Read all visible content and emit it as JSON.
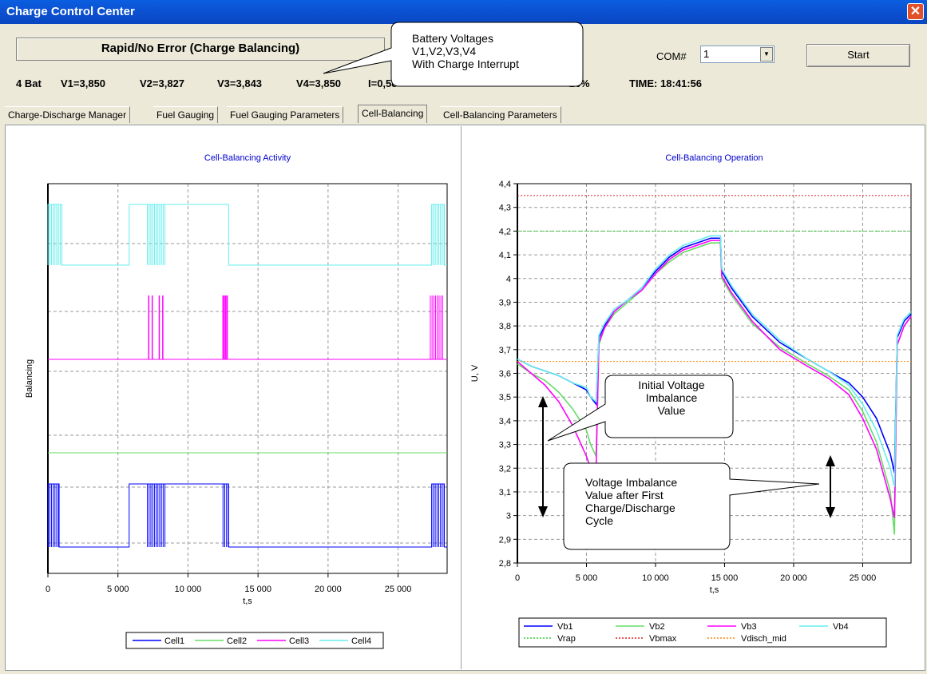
{
  "window": {
    "title": "Charge Control Center",
    "close_glyph": "✕"
  },
  "status": {
    "mode_text": "Rapid/No Error (Charge Balancing)"
  },
  "com": {
    "label": "COM#",
    "value": "1"
  },
  "start_button": {
    "label": "Start"
  },
  "readout": {
    "bat": "4 Bat",
    "v1": "V1=3,850",
    "v2": "V2=3,827",
    "v3": "V3=3,843",
    "v4": "V4=3,850",
    "current": "I=0,58",
    "soc": "=16%",
    "time": "TIME: 18:41:56"
  },
  "tabs": [
    {
      "label": "Charge-Discharge Manager",
      "active": false
    },
    {
      "label": "Fuel Gauging",
      "active": false
    },
    {
      "label": "Fuel Gauging Parameters",
      "active": false
    },
    {
      "label": "Cell-Balancing",
      "active": true
    },
    {
      "label": "Cell-Balancing Parameters",
      "active": false
    }
  ],
  "callouts": {
    "battery_voltages": [
      "Battery Voltages",
      "V1,V2,V3,V4",
      "With Charge Interrupt"
    ],
    "initial_imbalance": [
      "Initial Voltage",
      "Imbalance",
      "Value"
    ],
    "after_imbalance": [
      "Voltage Imbalance",
      "Value after First",
      "Charge/Discharge",
      "Cycle"
    ]
  },
  "chart_data": [
    {
      "type": "line",
      "title": "Cell-Balancing Activity",
      "xlabel": "t,s",
      "ylabel": "Balancing",
      "xlim": [
        0,
        28500
      ],
      "xticks": [
        0,
        5000,
        10000,
        15000,
        20000,
        25000
      ],
      "xtick_labels": [
        "0",
        "5 000",
        "10 000",
        "15 000",
        "20 000",
        "25 000"
      ],
      "grid": true,
      "legend_position": "bottom",
      "series": [
        {
          "name": "Cell1",
          "color": "#0000ff",
          "on_intervals": [
            [
              0,
              800
            ],
            [
              5800,
              12900
            ],
            [
              27400,
              28300
            ]
          ],
          "burst_regions": [
            [
              0,
              800
            ],
            [
              7100,
              8400
            ],
            [
              12500,
              12900
            ],
            [
              27400,
              28300
            ]
          ]
        },
        {
          "name": "Cell2",
          "color": "#66dd66",
          "on_intervals": [],
          "burst_regions": []
        },
        {
          "name": "Cell3",
          "color": "#ff00ff",
          "spikes": [
            7200,
            7450,
            7950,
            8200,
            12500,
            12600,
            12700,
            12800
          ],
          "burst_regions": [
            [
              27300,
              28300
            ]
          ]
        },
        {
          "name": "Cell4",
          "color": "#66eeee",
          "on_intervals": [
            [
              0,
              1000
            ],
            [
              5800,
              12900
            ],
            [
              27400,
              28300
            ]
          ],
          "burst_regions": [
            [
              0,
              1000
            ],
            [
              7100,
              8400
            ],
            [
              27400,
              28300
            ]
          ]
        }
      ]
    },
    {
      "type": "line",
      "title": "Cell-Balancing Operation",
      "xlabel": "t,s",
      "ylabel": "U, V",
      "xlim": [
        0,
        28500
      ],
      "ylim": [
        2.8,
        4.4
      ],
      "xticks": [
        0,
        5000,
        10000,
        15000,
        20000,
        25000
      ],
      "xtick_labels": [
        "0",
        "5 000",
        "10 000",
        "15 000",
        "20 000",
        "25 000"
      ],
      "yticks": [
        2.8,
        2.9,
        3.0,
        3.1,
        3.2,
        3.3,
        3.4,
        3.5,
        3.6,
        3.7,
        3.8,
        3.9,
        4.0,
        4.1,
        4.2,
        4.3,
        4.4
      ],
      "ytick_labels": [
        "2,8",
        "2,9",
        "3",
        "3,1",
        "3,2",
        "3,3",
        "3,4",
        "3,5",
        "3,6",
        "3,7",
        "3,8",
        "3,9",
        "4",
        "4,1",
        "4,2",
        "4,3",
        "4,4"
      ],
      "grid": true,
      "legend_position": "bottom",
      "x": [
        0,
        1000,
        2000,
        3000,
        4000,
        5000,
        5300,
        5700,
        5900,
        6300,
        7000,
        8000,
        9000,
        10000,
        11000,
        12000,
        13000,
        14000,
        14700,
        14800,
        15500,
        17000,
        19000,
        21000,
        22500,
        24000,
        25000,
        26000,
        27000,
        27300,
        27500,
        28000,
        28500
      ],
      "series": [
        {
          "name": "Vb1",
          "color": "#0000ff",
          "style": "solid",
          "values": [
            3.66,
            3.63,
            3.61,
            3.59,
            3.56,
            3.53,
            3.5,
            3.47,
            3.75,
            3.8,
            3.86,
            3.91,
            3.96,
            4.03,
            4.09,
            4.13,
            4.15,
            4.17,
            4.17,
            4.03,
            3.96,
            3.84,
            3.73,
            3.66,
            3.61,
            3.56,
            3.5,
            3.41,
            3.26,
            3.18,
            3.75,
            3.82,
            3.85
          ]
        },
        {
          "name": "Vb2",
          "color": "#66dd66",
          "style": "solid",
          "values": [
            3.64,
            3.6,
            3.57,
            3.52,
            3.45,
            3.36,
            3.3,
            3.25,
            3.72,
            3.79,
            3.85,
            3.9,
            3.95,
            4.02,
            4.07,
            4.11,
            4.13,
            4.15,
            4.15,
            4.0,
            3.93,
            3.81,
            3.71,
            3.64,
            3.59,
            3.53,
            3.44,
            3.31,
            3.1,
            2.92,
            3.72,
            3.8,
            3.84
          ]
        },
        {
          "name": "Vb3",
          "color": "#ff00ff",
          "style": "solid",
          "values": [
            3.65,
            3.6,
            3.55,
            3.48,
            3.38,
            3.25,
            3.2,
            3.2,
            3.73,
            3.79,
            3.86,
            3.91,
            3.95,
            4.02,
            4.08,
            4.12,
            4.14,
            4.16,
            4.16,
            4.01,
            3.94,
            3.82,
            3.7,
            3.63,
            3.58,
            3.51,
            3.41,
            3.28,
            3.07,
            2.99,
            3.72,
            3.8,
            3.84
          ]
        },
        {
          "name": "Vb4",
          "color": "#66eeee",
          "style": "solid",
          "values": [
            3.66,
            3.63,
            3.61,
            3.59,
            3.56,
            3.54,
            3.5,
            3.48,
            3.76,
            3.81,
            3.87,
            3.91,
            3.96,
            4.04,
            4.1,
            4.14,
            4.16,
            4.18,
            4.18,
            4.04,
            3.97,
            3.85,
            3.74,
            3.66,
            3.61,
            3.55,
            3.47,
            3.36,
            3.2,
            3.12,
            3.76,
            3.83,
            3.86
          ]
        },
        {
          "name": "Vrap",
          "color": "#33cc33",
          "style": "dotted",
          "constant": 4.2
        },
        {
          "name": "Vbmax",
          "color": "#dd2222",
          "style": "dotted",
          "constant": 4.35
        },
        {
          "name": "Vdisch_mid",
          "color": "#ff8800",
          "style": "dotted",
          "constant": 3.65
        }
      ]
    }
  ]
}
